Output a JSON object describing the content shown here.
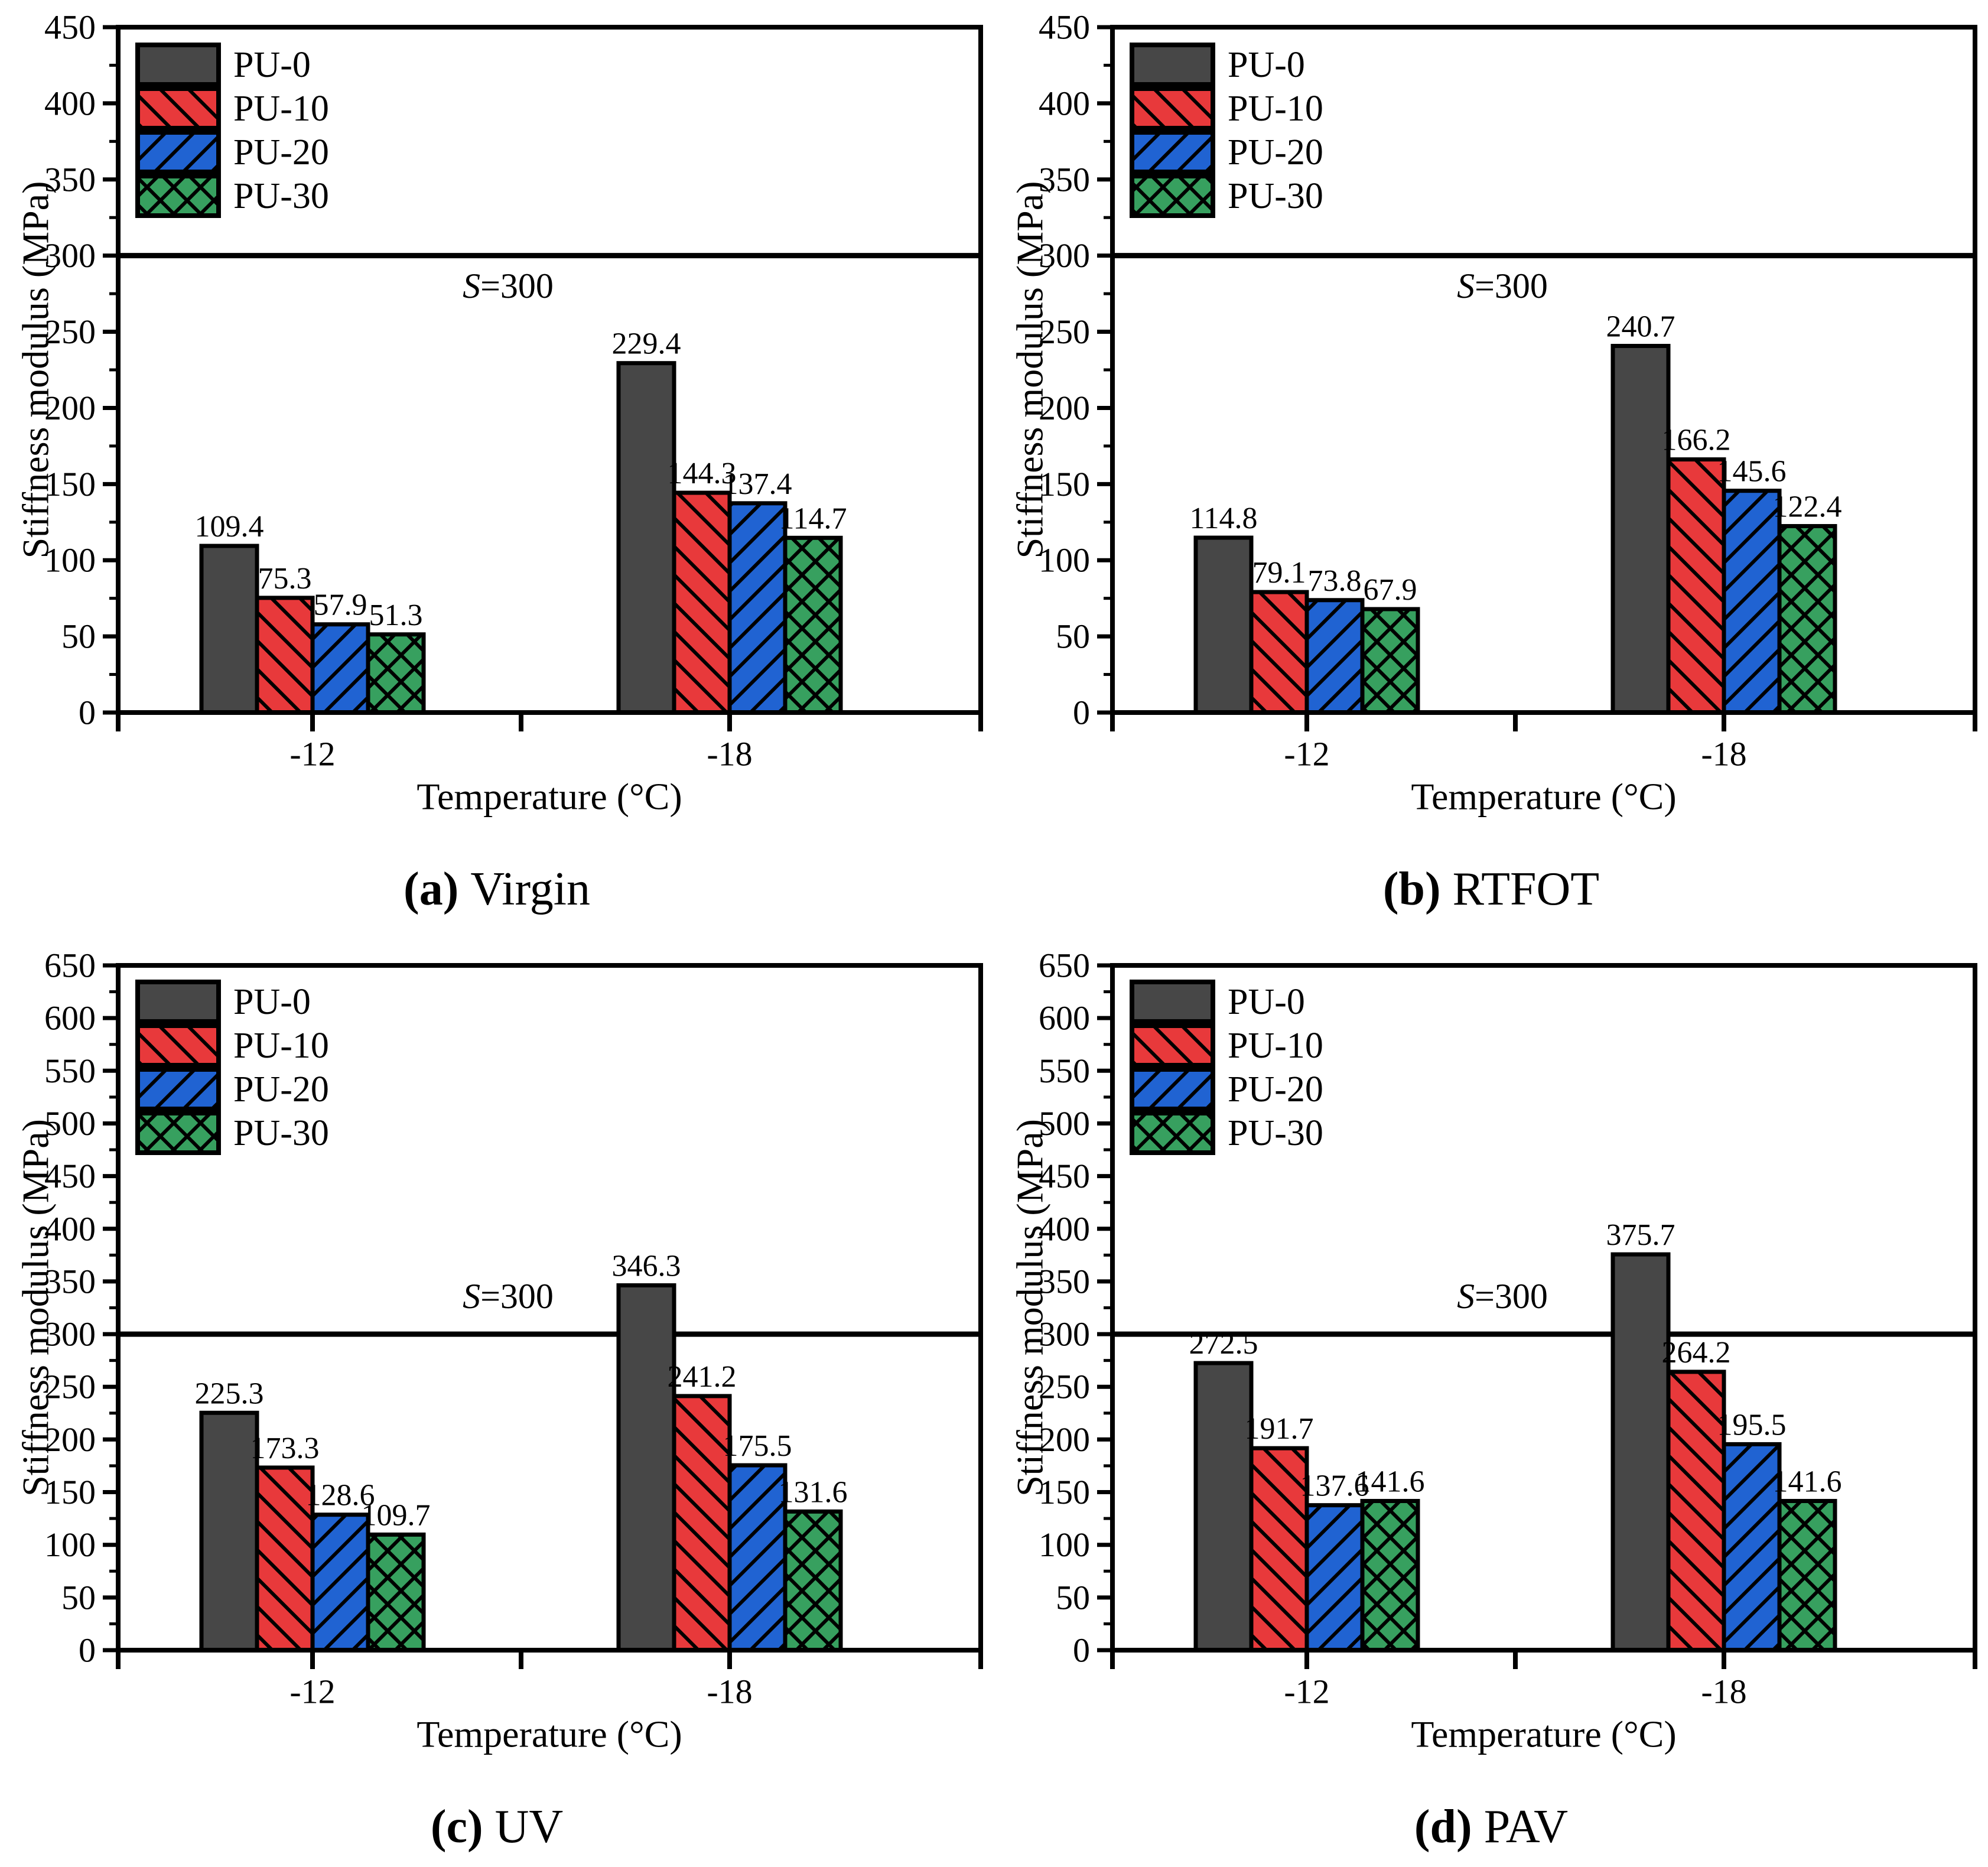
{
  "figure": {
    "xlabel": "Temperature (°C)",
    "ylabel": "Stiffness modulus (MPa)",
    "legend_labels": [
      "PU-0",
      "PU-10",
      "PU-20",
      "PU-30"
    ],
    "series_styles": [
      {
        "name": "PU-0",
        "color": "#474747",
        "hatch": "none",
        "swatch_icon": "solid-gray-swatch-icon"
      },
      {
        "name": "PU-10",
        "color": "#e8393b",
        "hatch": "diagonal-up",
        "swatch_icon": "red-forward-hatch-swatch-icon"
      },
      {
        "name": "PU-20",
        "color": "#2063d2",
        "hatch": "diagonal-down",
        "swatch_icon": "blue-backward-hatch-swatch-icon"
      },
      {
        "name": "PU-30",
        "color": "#37a05f",
        "hatch": "crosshatch",
        "swatch_icon": "green-crosshatch-swatch-icon"
      }
    ],
    "hatch_line_color": "#000000",
    "axis_color": "#000000"
  },
  "chart_data": [
    {
      "type": "bar",
      "panel_letter": "a",
      "title": "Virgin",
      "caption": "(a) Virgin",
      "xlabel": "Temperature (°C)",
      "ylabel": "Stiffness modulus (MPa)",
      "categories": [
        "-12",
        "-18"
      ],
      "series": [
        {
          "name": "PU-0",
          "values": [
            109.4,
            229.4
          ]
        },
        {
          "name": "PU-10",
          "values": [
            75.3,
            144.3
          ]
        },
        {
          "name": "PU-20",
          "values": [
            57.9,
            137.4
          ]
        },
        {
          "name": "PU-30",
          "values": [
            51.3,
            114.7
          ]
        }
      ],
      "ylim": [
        0,
        450
      ],
      "ytick_major": 50,
      "ytick_minor": 25,
      "grid": false,
      "legend_position": "top-left",
      "threshold": {
        "value": 300,
        "label": "S=300",
        "label_value": 280,
        "label_side": "below"
      }
    },
    {
      "type": "bar",
      "panel_letter": "b",
      "title": "RTFOT",
      "caption": "(b) RTFOT",
      "xlabel": "Temperature (°C)",
      "ylabel": "Stiffness modulus (MPa)",
      "categories": [
        "-12",
        "-18"
      ],
      "series": [
        {
          "name": "PU-0",
          "values": [
            114.8,
            240.7
          ]
        },
        {
          "name": "PU-10",
          "values": [
            79.1,
            166.2
          ]
        },
        {
          "name": "PU-20",
          "values": [
            73.8,
            145.6
          ]
        },
        {
          "name": "PU-30",
          "values": [
            67.9,
            122.4
          ]
        }
      ],
      "ylim": [
        0,
        450
      ],
      "ytick_major": 50,
      "ytick_minor": 25,
      "grid": false,
      "legend_position": "top-left",
      "threshold": {
        "value": 300,
        "label": "S=300",
        "label_value": 280,
        "label_side": "below"
      }
    },
    {
      "type": "bar",
      "panel_letter": "c",
      "title": "UV",
      "caption": "(c) UV",
      "xlabel": "Temperature (°C)",
      "ylabel": "Stiffness modulus (MPa)",
      "categories": [
        "-12",
        "-18"
      ],
      "series": [
        {
          "name": "PU-0",
          "values": [
            225.3,
            346.3
          ]
        },
        {
          "name": "PU-10",
          "values": [
            173.3,
            241.2
          ]
        },
        {
          "name": "PU-20",
          "values": [
            128.6,
            175.5
          ]
        },
        {
          "name": "PU-30",
          "values": [
            109.7,
            131.6
          ]
        }
      ],
      "ylim": [
        0,
        650
      ],
      "ytick_major": 50,
      "ytick_minor": 25,
      "grid": false,
      "legend_position": "top-left",
      "threshold": {
        "value": 300,
        "label": "S=300",
        "label_value": 336,
        "label_side": "above"
      }
    },
    {
      "type": "bar",
      "panel_letter": "d",
      "title": "PAV",
      "caption": "(d) PAV",
      "xlabel": "Temperature (°C)",
      "ylabel": "Stiffness modulus (MPa)",
      "categories": [
        "-12",
        "-18"
      ],
      "series": [
        {
          "name": "PU-0",
          "values": [
            272.5,
            375.7
          ]
        },
        {
          "name": "PU-10",
          "values": [
            191.7,
            264.2
          ]
        },
        {
          "name": "PU-20",
          "values": [
            137.6,
            195.5
          ]
        },
        {
          "name": "PU-30",
          "values": [
            141.6,
            141.6
          ]
        }
      ],
      "ylim": [
        0,
        650
      ],
      "ytick_major": 50,
      "ytick_minor": 25,
      "grid": false,
      "legend_position": "top-left",
      "threshold": {
        "value": 300,
        "label": "S=300",
        "label_value": 336,
        "label_side": "above"
      }
    }
  ]
}
